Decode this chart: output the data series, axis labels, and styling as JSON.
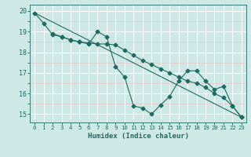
{
  "xlabel": "Humidex (Indice chaleur)",
  "xlim": [
    -0.5,
    23.5
  ],
  "ylim": [
    14.6,
    20.3
  ],
  "yticks": [
    15,
    16,
    17,
    18,
    19,
    20
  ],
  "xticks": [
    0,
    1,
    2,
    3,
    4,
    5,
    6,
    7,
    8,
    9,
    10,
    11,
    12,
    13,
    14,
    15,
    16,
    17,
    18,
    19,
    20,
    21,
    22,
    23
  ],
  "bg_color": "#cde8e5",
  "line_color": "#1e6b62",
  "grid_color": "#ffffff",
  "grid_minor_color": "#e8d8d8",
  "series1_x": [
    0,
    1,
    2,
    3,
    4,
    5,
    6,
    7,
    8,
    9,
    10,
    11,
    12,
    13,
    14,
    15,
    16,
    17,
    18,
    19,
    20,
    21,
    22,
    23
  ],
  "series1_y": [
    19.9,
    19.4,
    18.85,
    18.75,
    18.6,
    18.5,
    18.45,
    18.4,
    18.4,
    18.35,
    18.1,
    17.85,
    17.6,
    17.4,
    17.2,
    17.0,
    16.8,
    16.6,
    16.5,
    16.3,
    16.0,
    15.8,
    15.4,
    14.85
  ],
  "series2_x": [
    2,
    3,
    4,
    5,
    6,
    7,
    8,
    9,
    10,
    11,
    12,
    13,
    14,
    15,
    16,
    17,
    18,
    19,
    20,
    21,
    22,
    23
  ],
  "series2_y": [
    18.9,
    18.75,
    18.6,
    18.5,
    18.4,
    19.0,
    18.75,
    17.3,
    16.8,
    15.4,
    15.3,
    15.0,
    15.45,
    15.85,
    16.6,
    17.1,
    17.1,
    16.6,
    16.2,
    16.35,
    15.4,
    14.85
  ],
  "series3_x": [
    0,
    23
  ],
  "series3_y": [
    19.9,
    14.85
  ]
}
